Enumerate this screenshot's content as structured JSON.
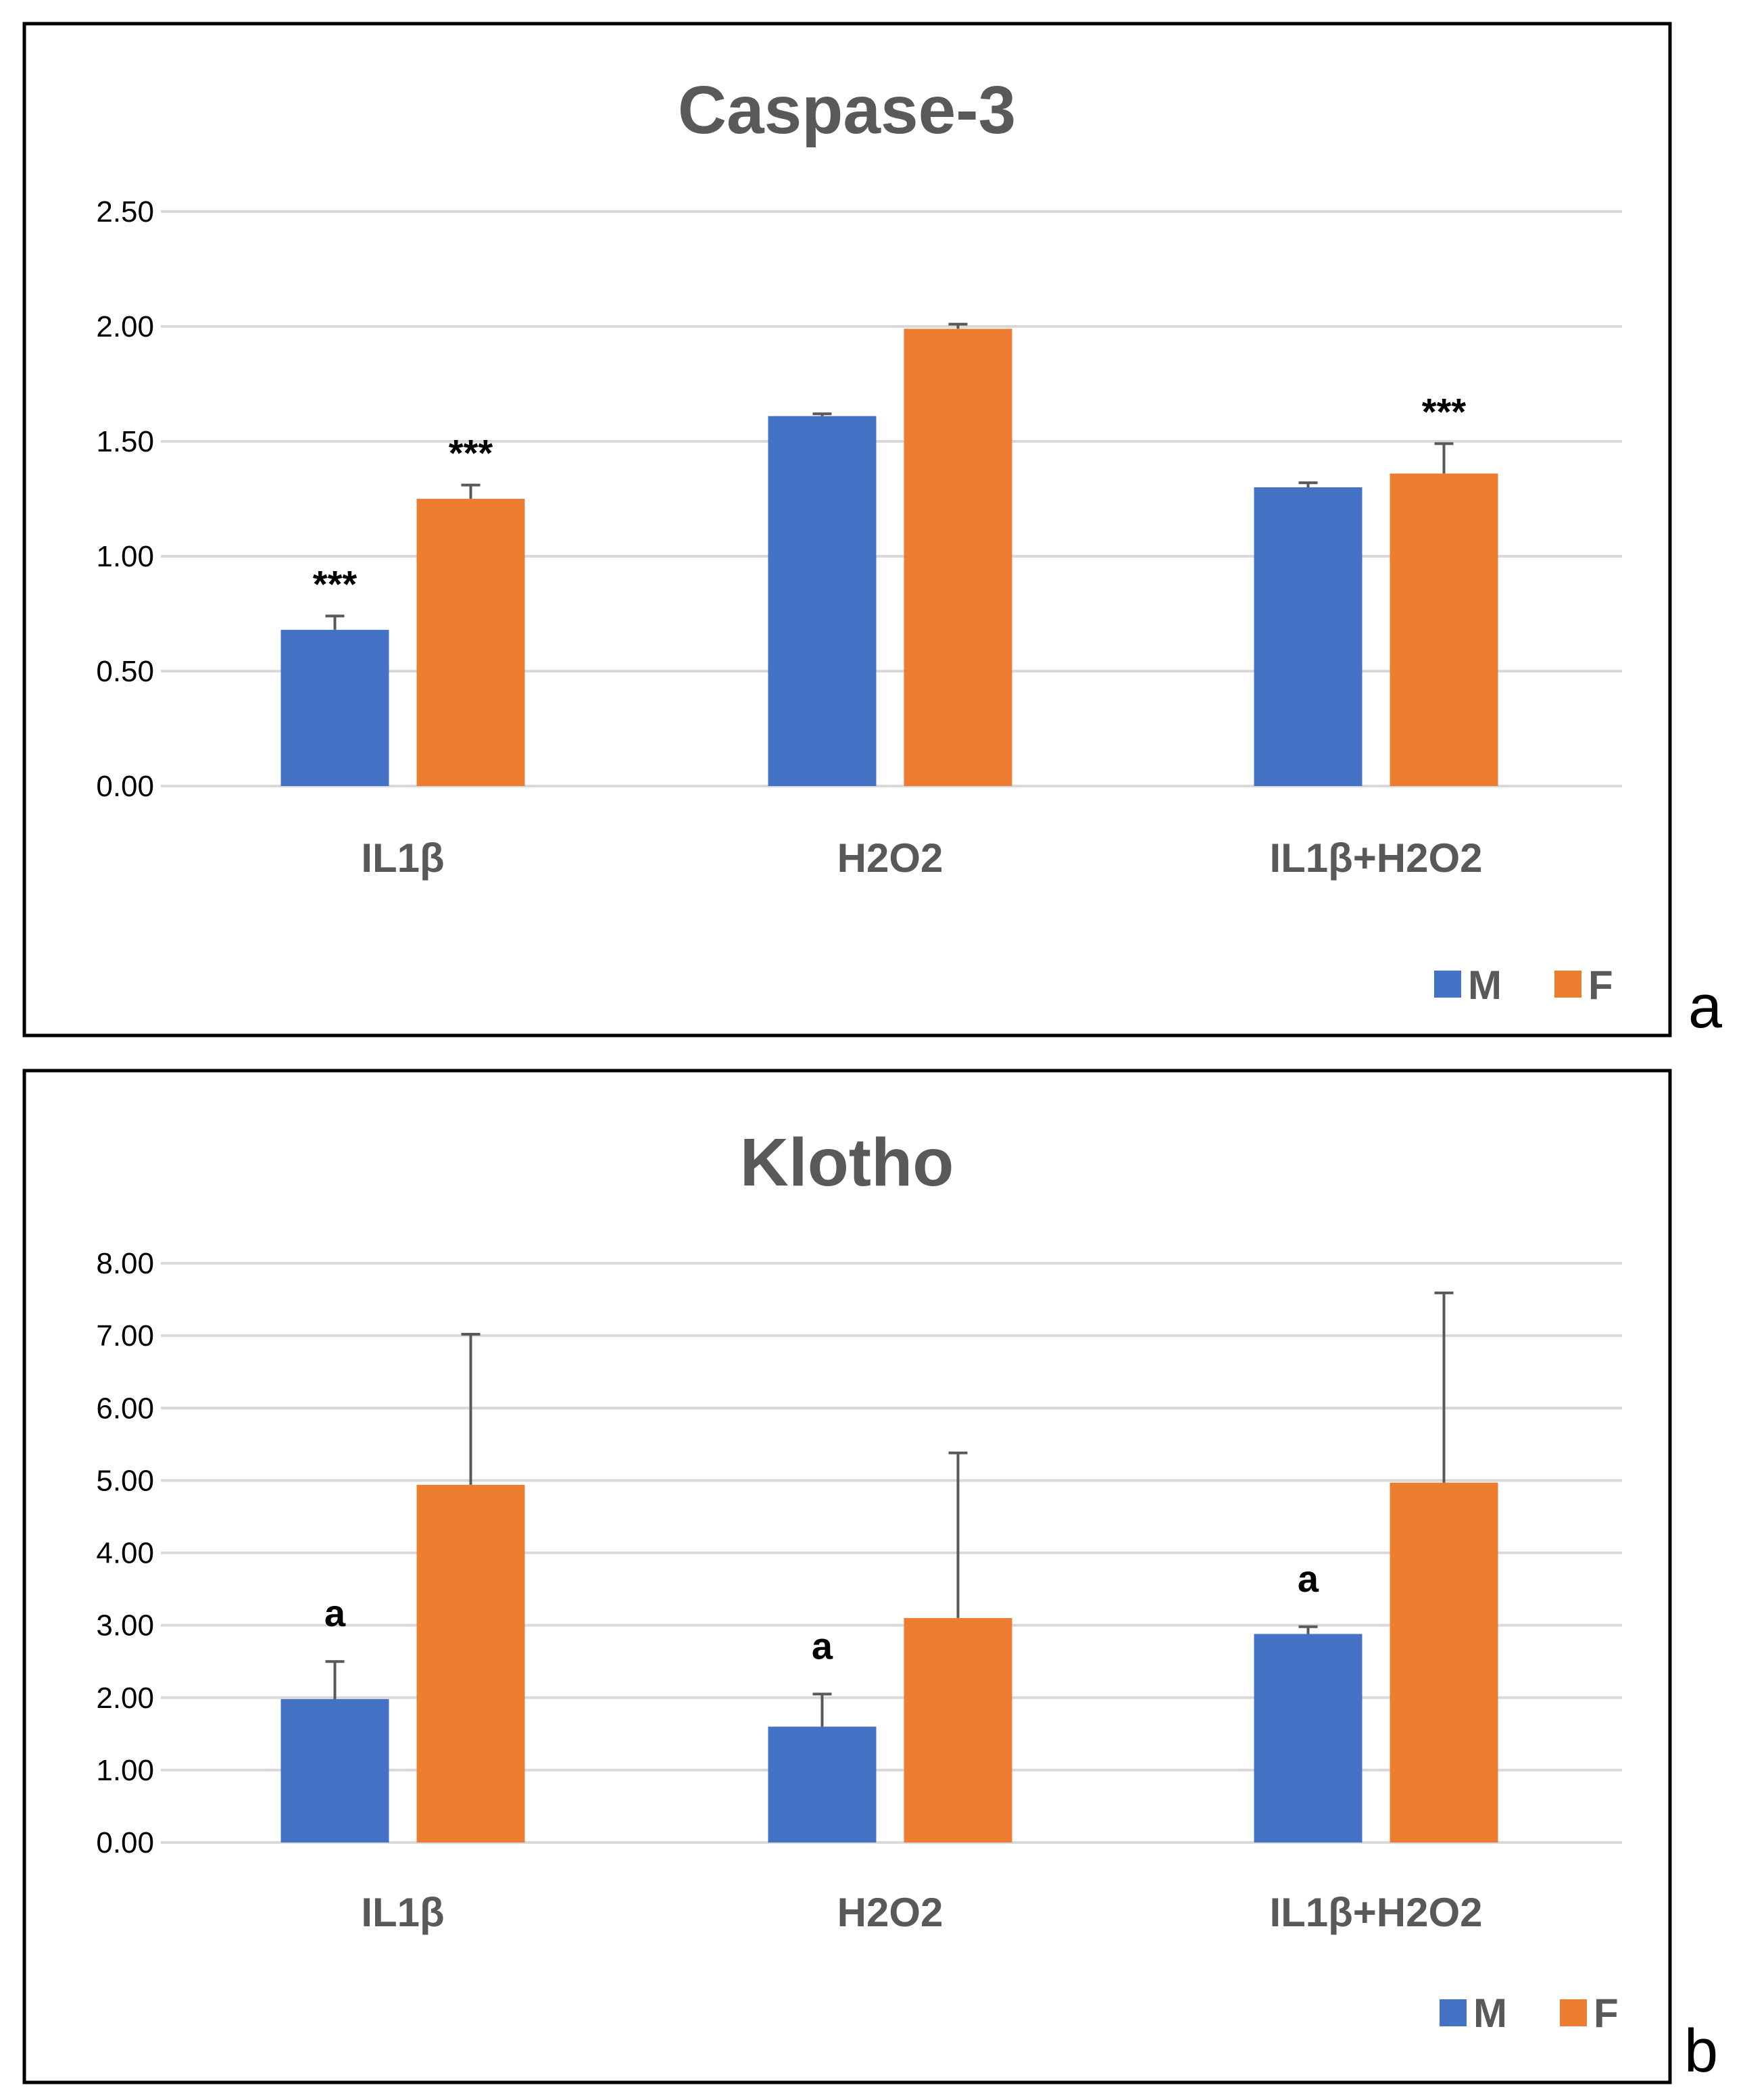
{
  "chart_data": [
    {
      "type": "bar",
      "title": "Caspase-3",
      "panel_label": "a",
      "categories": [
        "IL1β",
        "H2O2",
        "IL1β+H2O2"
      ],
      "series": [
        {
          "name": "M",
          "color": "#4472C4",
          "values": [
            0.68,
            1.61,
            1.3
          ],
          "errors": [
            0.06,
            0.01,
            0.02
          ]
        },
        {
          "name": "F",
          "color": "#ED7D31",
          "values": [
            1.25,
            1.99,
            1.36
          ],
          "errors": [
            0.06,
            0.02,
            0.13
          ]
        }
      ],
      "annotations": [
        {
          "series": "M",
          "category": "IL1β",
          "text": "***"
        },
        {
          "series": "F",
          "category": "IL1β",
          "text": "***"
        },
        {
          "series": "F",
          "category": "IL1β+H2O2",
          "text": "***"
        }
      ],
      "yticks": [
        "0.00",
        "0.50",
        "1.00",
        "1.50",
        "2.00",
        "2.50"
      ],
      "ylim": [
        0,
        2.5
      ],
      "xlabel": "",
      "ylabel": "",
      "grid": true,
      "legend": "bottom-right"
    },
    {
      "type": "bar",
      "title": "Klotho",
      "panel_label": "b",
      "categories": [
        "IL1β",
        "H2O2",
        "IL1β+H2O2"
      ],
      "series": [
        {
          "name": "M",
          "color": "#4472C4",
          "values": [
            1.98,
            1.6,
            2.88
          ],
          "errors": [
            0.52,
            0.45,
            0.1
          ]
        },
        {
          "name": "F",
          "color": "#ED7D31",
          "values": [
            4.94,
            3.1,
            4.97
          ],
          "errors": [
            2.08,
            2.28,
            2.62
          ]
        }
      ],
      "annotations": [
        {
          "series": "M",
          "category": "IL1β",
          "text": "a"
        },
        {
          "series": "M",
          "category": "H2O2",
          "text": "a"
        },
        {
          "series": "M",
          "category": "IL1β+H2O2",
          "text": "a"
        }
      ],
      "yticks": [
        "0.00",
        "1.00",
        "2.00",
        "3.00",
        "4.00",
        "5.00",
        "6.00",
        "7.00",
        "8.00"
      ],
      "ylim": [
        0,
        8
      ],
      "xlabel": "",
      "ylabel": "",
      "grid": true,
      "legend": "bottom-right"
    }
  ]
}
